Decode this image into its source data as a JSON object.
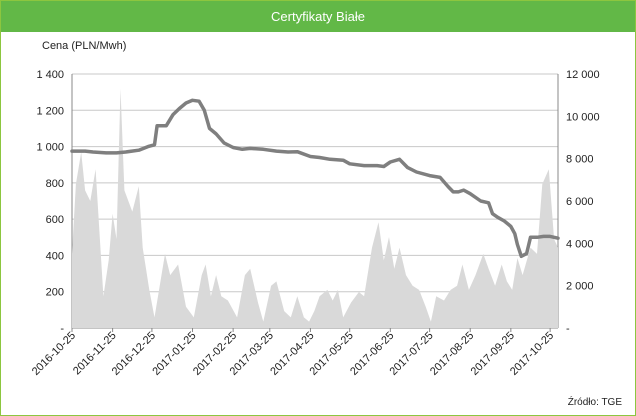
{
  "header": {
    "title": "Certyfikaty Białe"
  },
  "source": "Źródło: TGE",
  "chart_data": {
    "type": "line",
    "title": "Certyfikaty Białe",
    "ylabel": "Cena (PLN/Mwh)",
    "ylim": [
      0,
      1400
    ],
    "y_ticks": [
      "-",
      "200",
      "400",
      "600",
      "800",
      "1 000",
      "1 200",
      "1 400"
    ],
    "y_tick_values": [
      0,
      200,
      400,
      600,
      800,
      1000,
      1200,
      1400
    ],
    "y2lim": [
      0,
      12000
    ],
    "y2_ticks": [
      "-",
      "2 000",
      "4 000",
      "6 000",
      "8 000",
      "10 000",
      "12 000"
    ],
    "y2_tick_values": [
      0,
      2000,
      4000,
      6000,
      8000,
      10000,
      12000
    ],
    "grid": true,
    "x_ticks": [
      "2016-10-25",
      "2016-11-25",
      "2016-12-25",
      "2017-01-25",
      "2017-02-25",
      "2017-03-25",
      "2017-04-25",
      "2017-05-25",
      "2017-06-25",
      "2017-07-25",
      "2017-08-25",
      "2017-09-25",
      "2017-10-25"
    ],
    "x_range": [
      "2016-10-25",
      "2017-10-31"
    ],
    "series": [
      {
        "axis": "left",
        "type": "line",
        "color": "#7f7f7f",
        "points": [
          [
            "2016-10-25",
            975
          ],
          [
            "2016-11-04",
            975
          ],
          [
            "2016-11-10",
            970
          ],
          [
            "2016-11-20",
            965
          ],
          [
            "2016-11-28",
            965
          ],
          [
            "2016-12-05",
            970
          ],
          [
            "2016-12-15",
            980
          ],
          [
            "2016-12-22",
            1000
          ],
          [
            "2016-12-27",
            1010
          ],
          [
            "2016-12-29",
            1115
          ],
          [
            "2017-01-02",
            1115
          ],
          [
            "2017-01-05",
            1115
          ],
          [
            "2017-01-10",
            1175
          ],
          [
            "2017-01-15",
            1210
          ],
          [
            "2017-01-20",
            1240
          ],
          [
            "2017-01-25",
            1255
          ],
          [
            "2017-01-30",
            1250
          ],
          [
            "2017-02-03",
            1200
          ],
          [
            "2017-02-07",
            1100
          ],
          [
            "2017-02-12",
            1070
          ],
          [
            "2017-02-18",
            1020
          ],
          [
            "2017-02-25",
            995
          ],
          [
            "2017-03-04",
            985
          ],
          [
            "2017-03-10",
            990
          ],
          [
            "2017-03-20",
            985
          ],
          [
            "2017-03-30",
            975
          ],
          [
            "2017-04-08",
            970
          ],
          [
            "2017-04-15",
            972
          ],
          [
            "2017-04-25",
            945
          ],
          [
            "2017-05-02",
            940
          ],
          [
            "2017-05-10",
            930
          ],
          [
            "2017-05-20",
            925
          ],
          [
            "2017-05-25",
            905
          ],
          [
            "2017-06-05",
            895
          ],
          [
            "2017-06-15",
            895
          ],
          [
            "2017-06-20",
            890
          ],
          [
            "2017-06-25",
            915
          ],
          [
            "2017-07-02",
            930
          ],
          [
            "2017-07-08",
            885
          ],
          [
            "2017-07-15",
            860
          ],
          [
            "2017-07-25",
            840
          ],
          [
            "2017-08-02",
            830
          ],
          [
            "2017-08-08",
            780
          ],
          [
            "2017-08-12",
            750
          ],
          [
            "2017-08-16",
            750
          ],
          [
            "2017-08-20",
            760
          ],
          [
            "2017-08-25",
            740
          ],
          [
            "2017-09-02",
            700
          ],
          [
            "2017-09-08",
            690
          ],
          [
            "2017-09-11",
            630
          ],
          [
            "2017-09-15",
            610
          ],
          [
            "2017-09-20",
            590
          ],
          [
            "2017-09-25",
            560
          ],
          [
            "2017-09-28",
            520
          ],
          [
            "2017-09-30",
            460
          ],
          [
            "2017-10-03",
            395
          ],
          [
            "2017-10-07",
            410
          ],
          [
            "2017-10-10",
            500
          ],
          [
            "2017-10-15",
            500
          ],
          [
            "2017-10-20",
            505
          ],
          [
            "2017-10-25",
            505
          ],
          [
            "2017-10-31",
            495
          ]
        ]
      },
      {
        "axis": "right",
        "type": "area",
        "color": "#d9d9d9",
        "points": [
          [
            "2016-10-25",
            3500
          ],
          [
            "2016-10-28",
            6800
          ],
          [
            "2016-11-01",
            8300
          ],
          [
            "2016-11-04",
            6500
          ],
          [
            "2016-11-08",
            6000
          ],
          [
            "2016-11-12",
            7500
          ],
          [
            "2016-11-18",
            1500
          ],
          [
            "2016-11-22",
            3200
          ],
          [
            "2016-11-25",
            5400
          ],
          [
            "2016-11-28",
            4200
          ],
          [
            "2016-12-01",
            11300
          ],
          [
            "2016-12-04",
            6500
          ],
          [
            "2016-12-10",
            5500
          ],
          [
            "2016-12-15",
            6700
          ],
          [
            "2016-12-18",
            3800
          ],
          [
            "2016-12-23",
            1800
          ],
          [
            "2016-12-27",
            500
          ],
          [
            "2017-01-04",
            3500
          ],
          [
            "2017-01-08",
            2500
          ],
          [
            "2017-01-14",
            3000
          ],
          [
            "2017-01-20",
            1000
          ],
          [
            "2017-01-26",
            500
          ],
          [
            "2017-02-01",
            2500
          ],
          [
            "2017-02-04",
            3000
          ],
          [
            "2017-02-08",
            1500
          ],
          [
            "2017-02-12",
            2500
          ],
          [
            "2017-02-16",
            1500
          ],
          [
            "2017-02-21",
            1300
          ],
          [
            "2017-02-28",
            500
          ],
          [
            "2017-03-06",
            2500
          ],
          [
            "2017-03-10",
            2800
          ],
          [
            "2017-03-16",
            1200
          ],
          [
            "2017-03-20",
            300
          ],
          [
            "2017-03-26",
            2000
          ],
          [
            "2017-03-30",
            2200
          ],
          [
            "2017-04-05",
            800
          ],
          [
            "2017-04-10",
            500
          ],
          [
            "2017-04-15",
            1500
          ],
          [
            "2017-04-20",
            500
          ],
          [
            "2017-04-24",
            300
          ],
          [
            "2017-04-28",
            800
          ],
          [
            "2017-05-02",
            1500
          ],
          [
            "2017-05-08",
            1800
          ],
          [
            "2017-05-12",
            1300
          ],
          [
            "2017-05-16",
            1800
          ],
          [
            "2017-05-20",
            500
          ],
          [
            "2017-05-26",
            1200
          ],
          [
            "2017-06-01",
            1700
          ],
          [
            "2017-06-05",
            1500
          ],
          [
            "2017-06-11",
            3800
          ],
          [
            "2017-06-16",
            5000
          ],
          [
            "2017-06-20",
            3200
          ],
          [
            "2017-06-24",
            4300
          ],
          [
            "2017-06-28",
            2800
          ],
          [
            "2017-07-02",
            3800
          ],
          [
            "2017-07-07",
            2500
          ],
          [
            "2017-07-12",
            2000
          ],
          [
            "2017-07-17",
            1800
          ],
          [
            "2017-07-22",
            1000
          ],
          [
            "2017-07-26",
            300
          ],
          [
            "2017-07-30",
            1500
          ],
          [
            "2017-08-05",
            1300
          ],
          [
            "2017-08-10",
            1800
          ],
          [
            "2017-08-15",
            2000
          ],
          [
            "2017-08-19",
            3000
          ],
          [
            "2017-08-24",
            1800
          ],
          [
            "2017-08-29",
            2500
          ],
          [
            "2017-09-04",
            3500
          ],
          [
            "2017-09-08",
            2800
          ],
          [
            "2017-09-13",
            2000
          ],
          [
            "2017-09-18",
            3000
          ],
          [
            "2017-09-22",
            2200
          ],
          [
            "2017-09-26",
            1800
          ],
          [
            "2017-09-30",
            3300
          ],
          [
            "2017-10-04",
            2500
          ],
          [
            "2017-10-10",
            3800
          ],
          [
            "2017-10-15",
            3500
          ],
          [
            "2017-10-19",
            6800
          ],
          [
            "2017-10-24",
            7500
          ],
          [
            "2017-10-28",
            4200
          ],
          [
            "2017-10-31",
            3800
          ]
        ]
      }
    ]
  }
}
